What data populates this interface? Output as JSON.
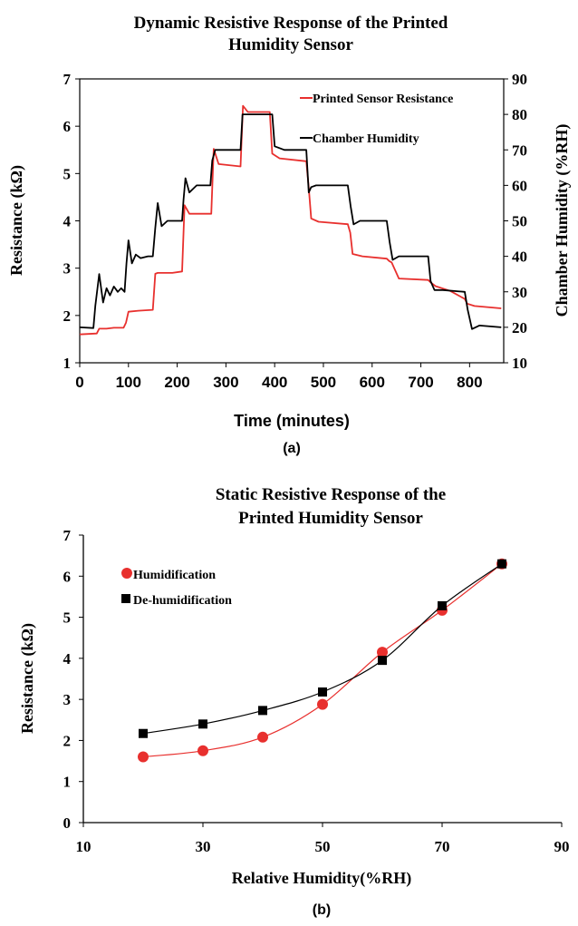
{
  "chart_data": [
    {
      "type": "line",
      "panel_label": "(a)",
      "title_lines": [
        "Dynamic Resistive Response of the Printed",
        "Humidity Sensor"
      ],
      "xlabel": "Time (minutes)",
      "ylabel_left": "Resistance (kΩ)",
      "ylabel_right": "Chamber Humidity  (%RH)",
      "xlim": [
        0,
        870
      ],
      "ylim_left": [
        1,
        7
      ],
      "ylim_right": [
        10,
        90
      ],
      "xticks": [
        0,
        100,
        200,
        300,
        400,
        500,
        600,
        700,
        800
      ],
      "yticks_left": [
        1,
        2,
        3,
        4,
        5,
        6,
        7
      ],
      "yticks_right": [
        10,
        20,
        30,
        40,
        50,
        60,
        70,
        80,
        90
      ],
      "grid": false,
      "legend_position": "top-right",
      "series": [
        {
          "name": "Printed Sensor Resistance",
          "axis": "left",
          "color": "#e8302e",
          "x": [
            0,
            35,
            40,
            55,
            70,
            90,
            95,
            100,
            120,
            150,
            155,
            160,
            190,
            210,
            215,
            225,
            270,
            275,
            285,
            330,
            335,
            345,
            390,
            395,
            410,
            465,
            470,
            475,
            490,
            550,
            555,
            560,
            580,
            630,
            635,
            640,
            655,
            715,
            720,
            730,
            760,
            790,
            795,
            810,
            865
          ],
          "y": [
            1.6,
            1.62,
            1.72,
            1.72,
            1.74,
            1.74,
            1.85,
            2.08,
            2.1,
            2.12,
            2.88,
            2.9,
            2.9,
            2.93,
            4.33,
            4.15,
            4.15,
            5.52,
            5.2,
            5.15,
            6.43,
            6.3,
            6.3,
            5.42,
            5.32,
            5.26,
            4.7,
            4.05,
            3.98,
            3.93,
            3.75,
            3.3,
            3.25,
            3.2,
            3.15,
            3.12,
            2.78,
            2.75,
            2.7,
            2.62,
            2.52,
            2.35,
            2.25,
            2.2,
            2.15
          ]
        },
        {
          "name": "Chamber Humidity",
          "axis": "right",
          "color": "#000000",
          "x": [
            0,
            28,
            32,
            40,
            48,
            55,
            62,
            70,
            78,
            85,
            92,
            96,
            100,
            107,
            115,
            125,
            140,
            150,
            155,
            160,
            168,
            180,
            210,
            213,
            217,
            225,
            240,
            268,
            272,
            278,
            290,
            330,
            334,
            340,
            395,
            400,
            420,
            465,
            470,
            475,
            485,
            550,
            556,
            562,
            575,
            630,
            636,
            642,
            655,
            715,
            720,
            728,
            745,
            790,
            796,
            805,
            820,
            865
          ],
          "y": [
            20,
            19.8,
            26,
            35,
            27,
            31,
            29,
            31.5,
            30,
            31,
            30,
            38,
            44.5,
            38,
            40.5,
            39.5,
            40,
            40,
            48,
            55,
            48.5,
            50,
            50,
            56,
            62,
            58,
            60,
            60,
            67,
            70,
            70,
            70,
            80,
            80,
            80,
            71,
            70,
            70,
            58,
            59.5,
            60,
            60,
            54,
            49,
            50,
            50,
            44,
            39,
            40,
            40,
            33,
            30.5,
            30.5,
            30,
            25,
            19.5,
            20.5,
            20
          ]
        }
      ]
    },
    {
      "type": "line",
      "panel_label": "(b)",
      "title_lines": [
        "Static Resistive Response of the",
        "Printed Humidity Sensor"
      ],
      "xlabel": "Relative Humidity(%RH)",
      "ylabel": "Resistance (kΩ)",
      "xlim": [
        10,
        90
      ],
      "ylim": [
        0,
        7
      ],
      "xticks": [
        10,
        30,
        50,
        70,
        90
      ],
      "yticks": [
        0,
        1,
        2,
        3,
        4,
        5,
        6,
        7
      ],
      "grid": false,
      "legend_position": "top-left",
      "series": [
        {
          "name": "Humidification",
          "color": "#e8302e",
          "marker": "circle",
          "x": [
            20,
            30,
            40,
            50,
            60,
            70,
            80
          ],
          "y": [
            1.6,
            1.75,
            2.08,
            2.88,
            4.15,
            5.17,
            6.3
          ]
        },
        {
          "name": "De-humidification",
          "color": "#000000",
          "marker": "square",
          "x": [
            20,
            30,
            40,
            50,
            60,
            70,
            80
          ],
          "y": [
            2.17,
            2.4,
            2.73,
            3.18,
            3.95,
            5.28,
            6.3
          ]
        }
      ]
    }
  ]
}
